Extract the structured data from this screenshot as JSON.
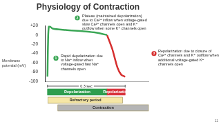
{
  "chart_data": {
    "type": "line",
    "title": "Physiology of Contraction",
    "y_label": "Membrane potential (mV)",
    "xlim": [
      0,
      0.4
    ],
    "ylim": [
      -100,
      20
    ],
    "yticks": [
      {
        "value": 20,
        "label": "+20"
      },
      0,
      -20,
      -40,
      -60,
      -80,
      -100
    ],
    "grid": false,
    "tick_labels": "y",
    "series": [
      {
        "color": "#3aa655",
        "x": [
          0.01,
          0.012,
          0.016,
          0.03,
          0.08,
          0.15,
          0.2,
          0.24
        ],
        "values": [
          -90,
          -20,
          20,
          14,
          11,
          8,
          5,
          0
        ]
      },
      {
        "color": "#d62f2f",
        "x": [
          0.24,
          0.26,
          0.28,
          0.295,
          0.31
        ],
        "values": [
          0,
          -30,
          -70,
          -86,
          -90
        ]
      }
    ],
    "annotations": [
      {
        "number": 1,
        "text": "Rapid depolarization due to Na⁺ inflow when voltage-gated fast Na⁺ channels open"
      },
      {
        "number": 2,
        "text": "Plateau (maintained depolarization) due to Ca²⁺ inflow when voltage-gated slow Ca²⁺ channels open and K⁺ outflow when some K⁺ channels open"
      },
      {
        "number": 3,
        "text": "Repolarization due to closure of Ca²⁺ channels and K⁺ outflow when additional voltage-gated K⁺ channels open"
      }
    ],
    "duration": {
      "label": "0.3 sec",
      "start": 0.01,
      "end": 0.31
    },
    "phases": [
      {
        "label": "Depolarization",
        "start": 0.01,
        "end": 0.24,
        "color": "#2f9e4f"
      },
      {
        "label": "Repolarization",
        "start": 0.24,
        "end": 0.31,
        "color": "#d9363e"
      },
      {
        "label": "Refractory period",
        "start": 0.0125,
        "end": 0.3,
        "color": "#f6e7a6"
      },
      {
        "label": "Contraction",
        "start": 0.05,
        "end": 0.4,
        "color": "#b5b5b5"
      }
    ],
    "page_number": 11
  }
}
